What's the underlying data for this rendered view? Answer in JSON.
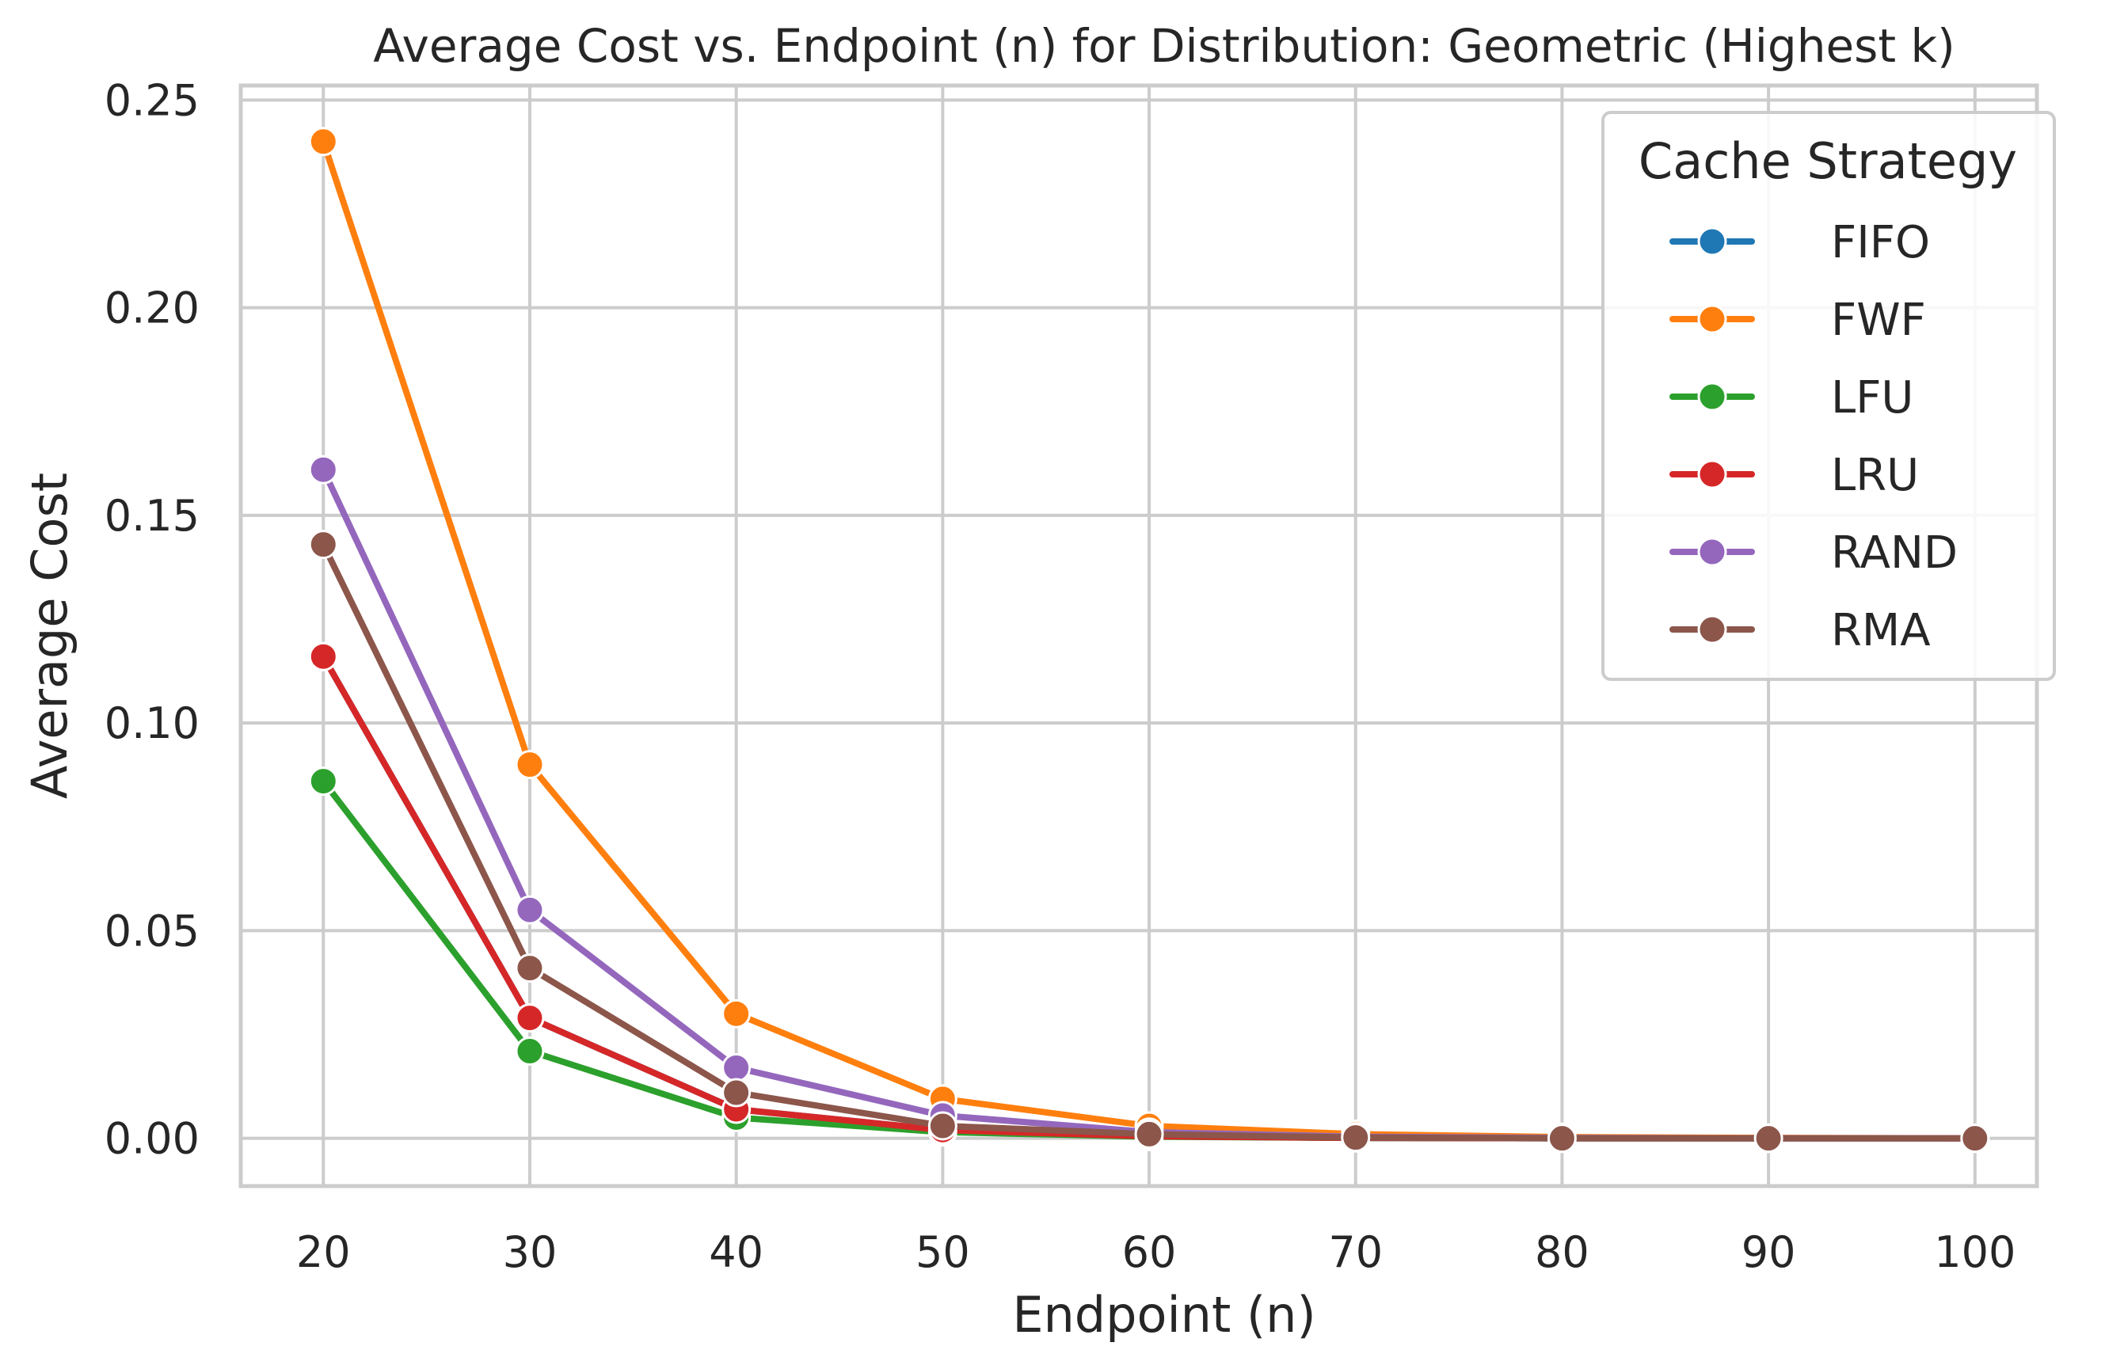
{
  "chart_data": {
    "type": "line",
    "title": "Average Cost vs. Endpoint (n) for Distribution: Geometric (Highest k)",
    "xlabel": "Endpoint (n)",
    "ylabel": "Average Cost",
    "x": [
      20,
      30,
      40,
      50,
      60,
      70,
      80,
      90,
      100
    ],
    "xlim": [
      16,
      103
    ],
    "ylim": [
      -0.0115,
      0.2535
    ],
    "xticks": [
      "20",
      "30",
      "40",
      "50",
      "60",
      "70",
      "80",
      "90",
      "100"
    ],
    "yticks": [
      "0.00",
      "0.05",
      "0.10",
      "0.15",
      "0.20",
      "0.25"
    ],
    "grid": true,
    "legend": {
      "title": "Cache Strategy",
      "placement": "top-right"
    },
    "series": [
      {
        "name": "FIFO",
        "color": "#1f77b4",
        "values": [
          0.116,
          0.029,
          0.007,
          0.002,
          0.0005,
          0.0001,
          0.0,
          0.0,
          0.0
        ]
      },
      {
        "name": "FWF",
        "color": "#ff7f0e",
        "values": [
          0.24,
          0.09,
          0.03,
          0.0095,
          0.003,
          0.001,
          0.0003,
          0.0001,
          0.0
        ]
      },
      {
        "name": "LFU",
        "color": "#2ca02c",
        "values": [
          0.086,
          0.021,
          0.005,
          0.0015,
          0.0004,
          0.0001,
          0.0,
          0.0,
          0.0
        ]
      },
      {
        "name": "LRU",
        "color": "#d62728",
        "values": [
          0.116,
          0.029,
          0.007,
          0.002,
          0.0005,
          0.0001,
          0.0,
          0.0,
          0.0
        ]
      },
      {
        "name": "RAND",
        "color": "#9467bd",
        "values": [
          0.161,
          0.055,
          0.017,
          0.0055,
          0.0015,
          0.0004,
          0.0001,
          0.0,
          0.0
        ]
      },
      {
        "name": "RMA",
        "color": "#8c564b",
        "values": [
          0.143,
          0.041,
          0.011,
          0.003,
          0.001,
          0.0002,
          0.0,
          0.0,
          0.0
        ]
      }
    ]
  }
}
